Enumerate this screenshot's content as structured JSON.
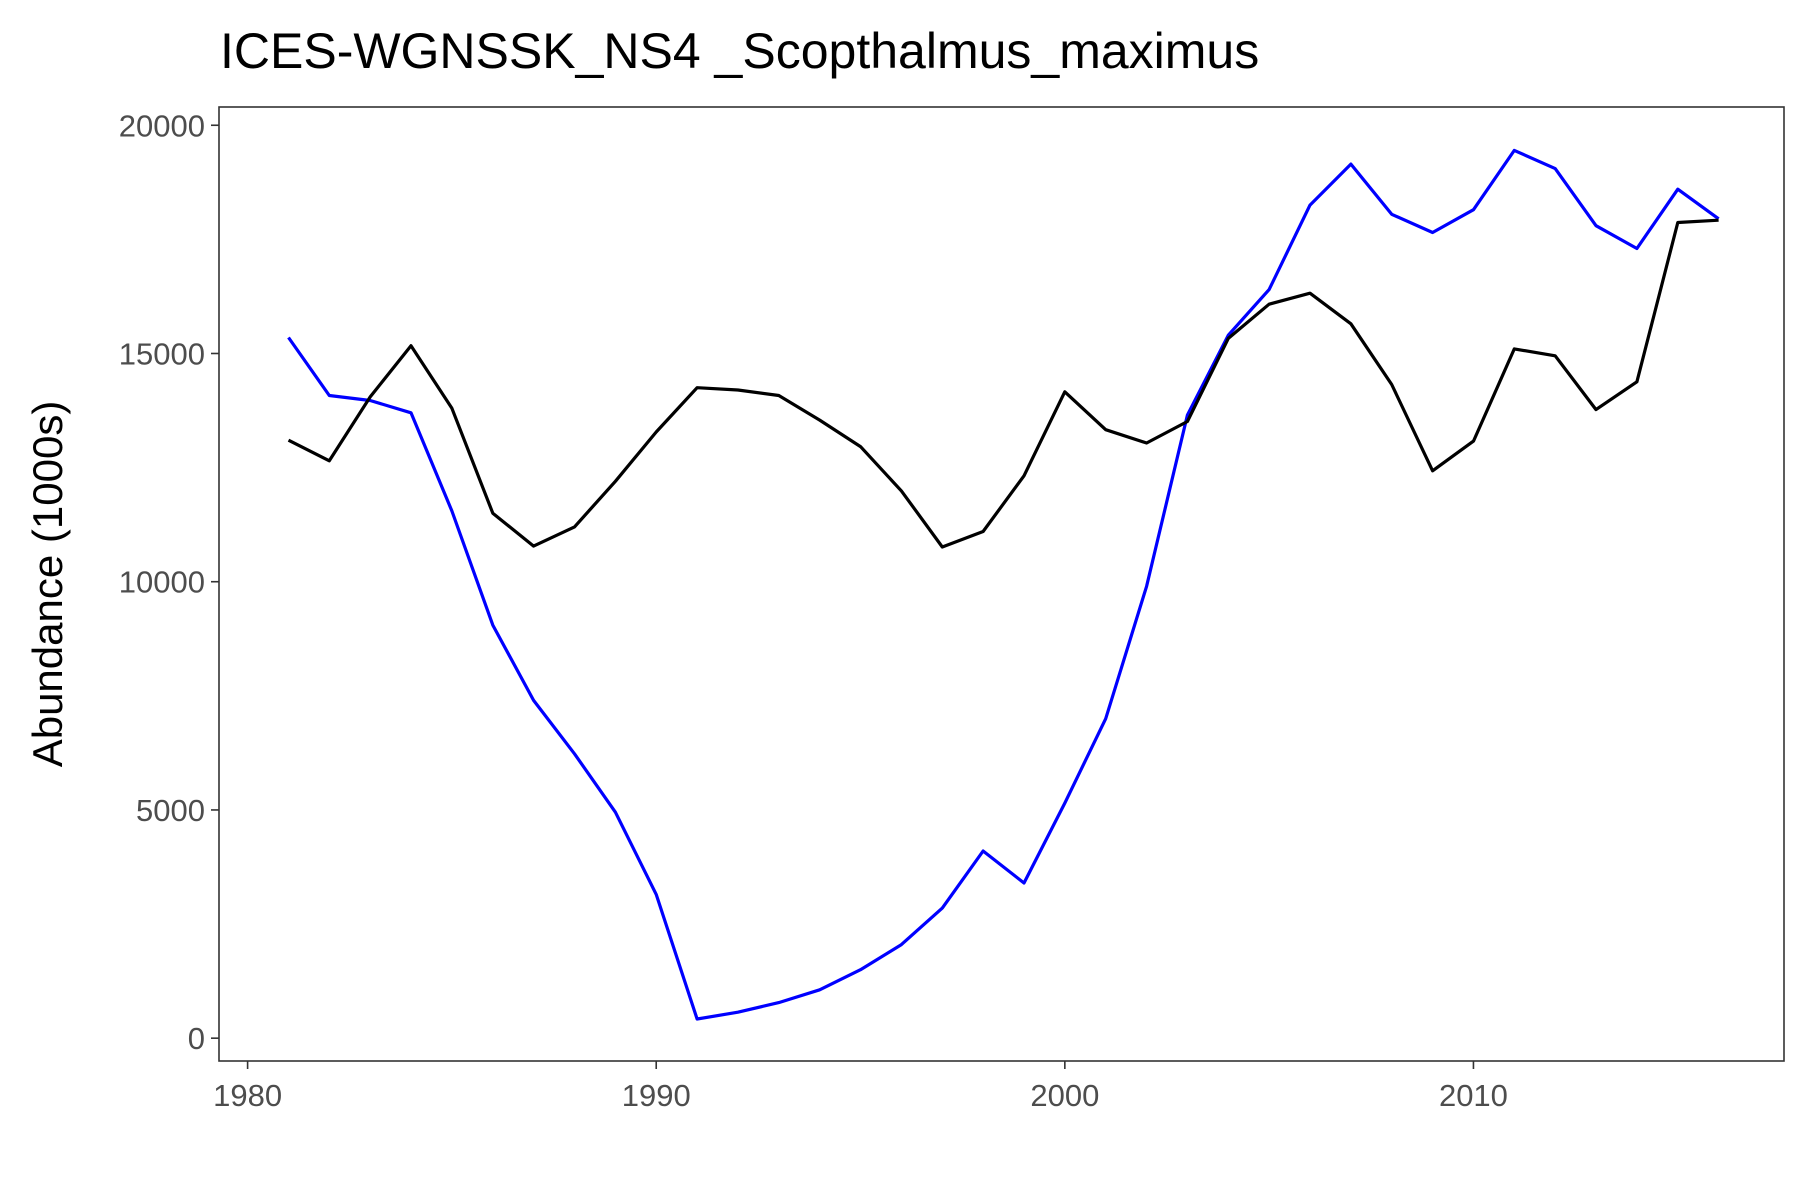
{
  "chart_data": {
    "type": "line",
    "title": "ICES-WGNSSK_NS4 _Scopthalmus_maximus",
    "xlabel": "",
    "ylabel": "Abundance (1000s)",
    "xlim": [
      1979.3,
      2017.6
    ],
    "ylim": [
      -500,
      20400
    ],
    "x_ticks": [
      1980,
      1990,
      2000,
      2010
    ],
    "x_tick_labels": [
      "1980",
      "1990",
      "2000",
      "2010"
    ],
    "y_ticks": [
      0,
      5000,
      10000,
      15000,
      20000
    ],
    "y_tick_labels": [
      "0",
      "5000",
      "10000",
      "15000",
      "20000"
    ],
    "grid": false,
    "legend": "none",
    "x": [
      1981,
      1982,
      1983,
      1984,
      1985,
      1986,
      1987,
      1988,
      1989,
      1990,
      1991,
      1992,
      1993,
      1994,
      1995,
      1996,
      1997,
      1998,
      1999,
      2000,
      2001,
      2002,
      2003,
      2004,
      2005,
      2006,
      2007,
      2008,
      2009,
      2010,
      2011,
      2012,
      2013,
      2014,
      2015,
      2016
    ],
    "series": [
      {
        "color": "#0000ff",
        "values": [
          15350,
          14080,
          13970,
          13700,
          11550,
          9050,
          7400,
          6230,
          4950,
          3150,
          420,
          570,
          780,
          1060,
          1500,
          2050,
          2850,
          4100,
          3400,
          5150,
          7000,
          9900,
          13650,
          15400,
          16400,
          18250,
          19150,
          18050,
          17650,
          18150,
          19450,
          19050,
          17800,
          17300,
          18600,
          17950
        ]
      },
      {
        "color": "#000000",
        "values": [
          13100,
          12650,
          14050,
          15170,
          13800,
          11500,
          10780,
          11200,
          12200,
          13280,
          14250,
          14200,
          14080,
          13540,
          12960,
          11990,
          10760,
          11100,
          12320,
          14160,
          13330,
          13040,
          13510,
          15330,
          16080,
          16320,
          15650,
          14320,
          12430,
          13080,
          15100,
          14950,
          13770,
          14380,
          17870,
          17920
        ]
      }
    ]
  }
}
